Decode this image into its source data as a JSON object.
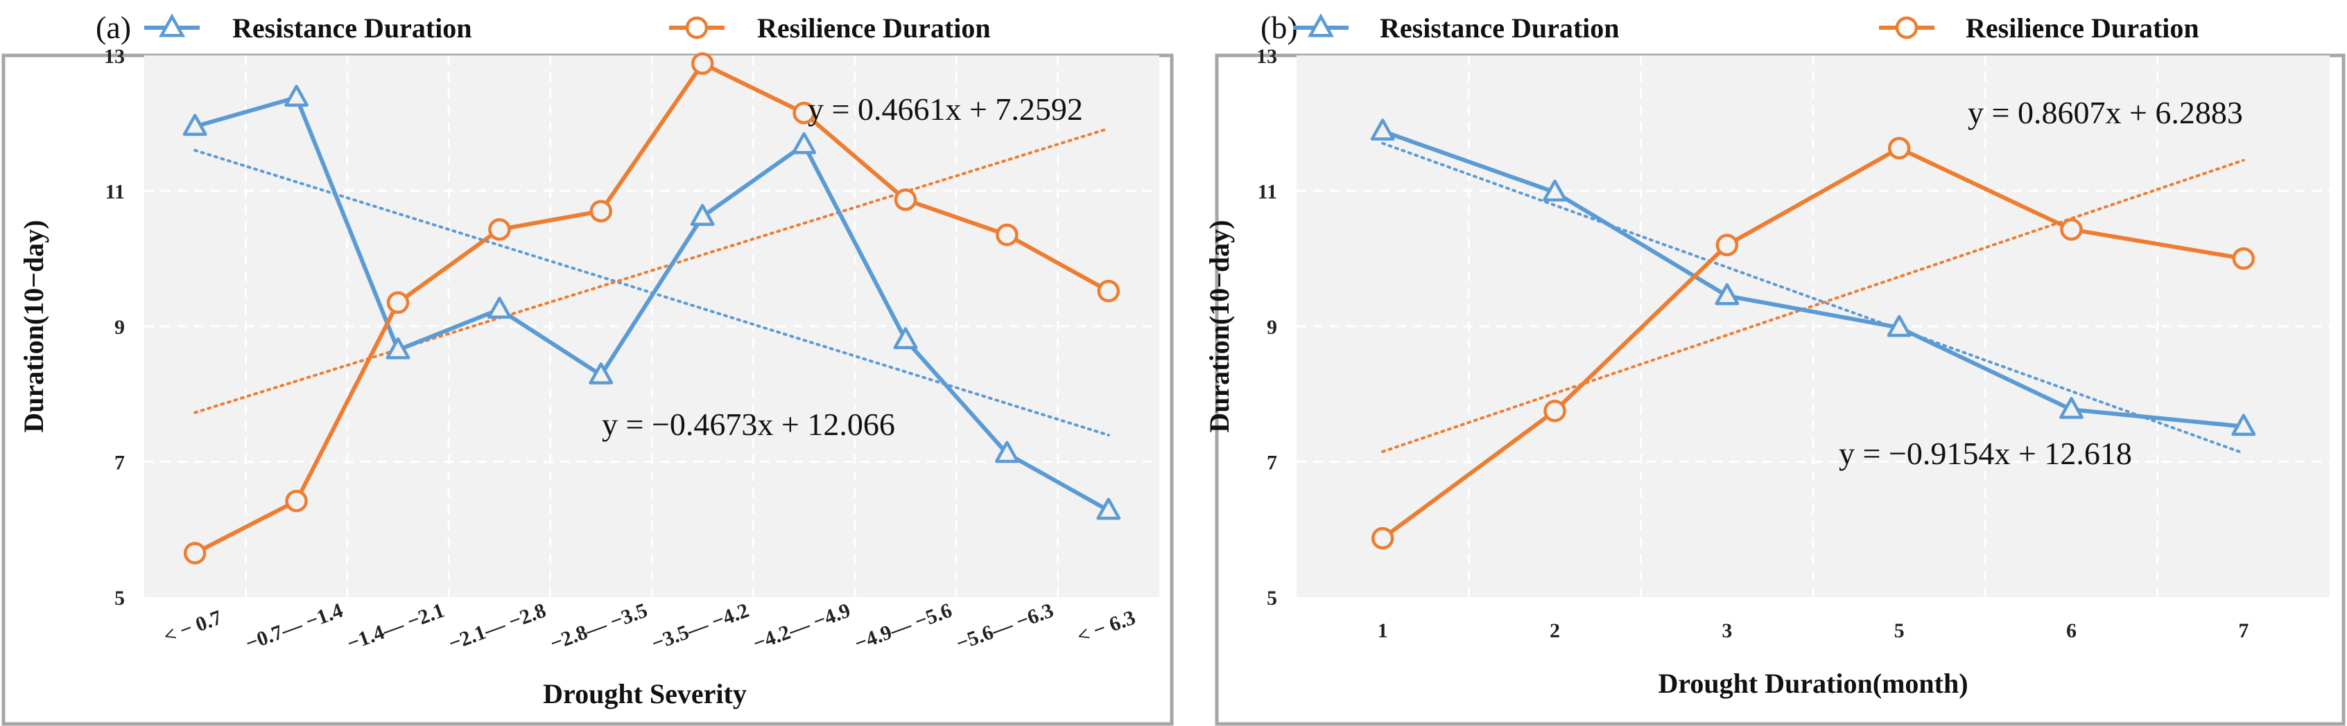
{
  "chart_data": [
    {
      "type": "line",
      "panel_label": "(a)",
      "categories": [
        "< − 0.7",
        "−0.7— −1.4",
        "−1.4— −2.1",
        "−2.1— −2.8",
        "−2.8— −3.5",
        "−3.5— −4.2",
        "−4.2— −4.9",
        "−4.9— −5.6",
        "−5.6— −6.3",
        "< − 6.3"
      ],
      "series": [
        {
          "name": "Resistance Duration",
          "color": "#5b9bd5",
          "marker": "triangle",
          "values": [
            11.95,
            12.38,
            8.65,
            9.25,
            8.28,
            10.62,
            11.68,
            8.8,
            7.12,
            6.28
          ]
        },
        {
          "name": "Resilience Duration",
          "color": "#ed7d31",
          "marker": "circle",
          "values": [
            5.65,
            6.42,
            9.35,
            10.43,
            10.7,
            12.88,
            12.15,
            10.87,
            10.35,
            9.52
          ]
        }
      ],
      "trendlines": [
        {
          "series": "Resistance Duration",
          "color": "#5b9bd5",
          "slope": -0.4673,
          "intercept": 12.066,
          "label": "y = −0.4673x + 12.066"
        },
        {
          "series": "Resilience Duration",
          "color": "#ed7d31",
          "slope": 0.4661,
          "intercept": 7.2592,
          "label": "y = 0.4661x + 7.2592"
        }
      ],
      "xlabel": "Drought Severity",
      "ylabel": "Duration(10−day)",
      "ylim": [
        5,
        13
      ],
      "yticks": [
        5,
        7,
        9,
        11,
        13
      ],
      "grid": true,
      "legend_position": "top"
    },
    {
      "type": "line",
      "panel_label": "(b)",
      "categories": [
        "1",
        "2",
        "3",
        "5",
        "6",
        "7"
      ],
      "series": [
        {
          "name": "Resistance Duration",
          "color": "#5b9bd5",
          "marker": "triangle",
          "values": [
            11.88,
            10.98,
            9.45,
            8.98,
            7.77,
            7.52
          ]
        },
        {
          "name": "Resilience Duration",
          "color": "#ed7d31",
          "marker": "circle",
          "values": [
            5.87,
            7.75,
            10.2,
            11.63,
            10.43,
            10.0
          ]
        }
      ],
      "trendlines": [
        {
          "series": "Resistance Duration",
          "color": "#5b9bd5",
          "slope": -0.9154,
          "intercept": 12.618,
          "label": "y = −0.9154x + 12.618"
        },
        {
          "series": "Resilience Duration",
          "color": "#ed7d31",
          "slope": 0.8607,
          "intercept": 6.2883,
          "label": "y = 0.8607x + 6.2883"
        }
      ],
      "xlabel": "Drought Duration(month)",
      "ylabel": "Duration(10−day)",
      "ylim": [
        5,
        13
      ],
      "yticks": [
        5,
        7,
        9,
        11,
        13
      ],
      "grid": true,
      "legend_position": "top"
    }
  ]
}
